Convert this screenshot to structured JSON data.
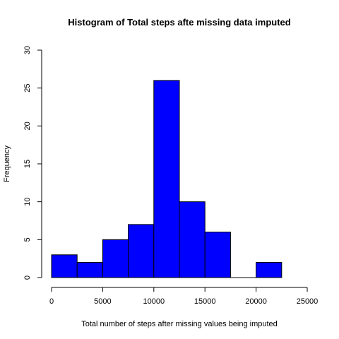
{
  "chart_data": {
    "type": "bar",
    "title": "Histogram of Total steps afte missing data imputed",
    "xlabel": "Total number of steps after missing values being imputed",
    "ylabel": "Frequency",
    "bin_edges": [
      0,
      2500,
      5000,
      7500,
      10000,
      12500,
      15000,
      17500,
      20000,
      22500
    ],
    "values": [
      3,
      2,
      5,
      7,
      26,
      10,
      6,
      0,
      2
    ],
    "xlim": [
      0,
      25000
    ],
    "ylim": [
      0,
      30
    ],
    "x_ticks": [
      0,
      5000,
      10000,
      15000,
      20000,
      25000
    ],
    "y_ticks": [
      0,
      5,
      10,
      15,
      20,
      25,
      30
    ],
    "bar_color": "#0000ff",
    "grid": false
  }
}
